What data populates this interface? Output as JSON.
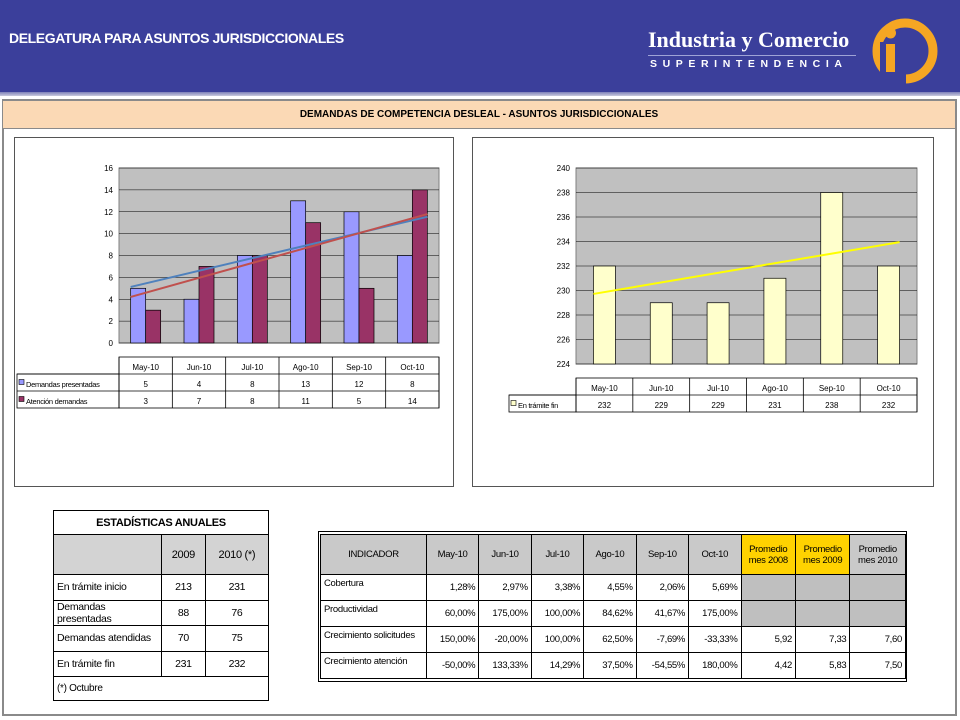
{
  "header": {
    "title": "DELEGATURA PARA  ASUNTOS JURISDICCIONALES",
    "brand_name": "Industria y Comercio",
    "brand_sub": "SUPERINTENDENCIA",
    "logo_text": "sic"
  },
  "section_title": "DEMANDAS DE COMPETENCIA DESLEAL - ASUNTOS JURISDICCIONALES",
  "colors": {
    "header_bg": "#3b3f9b",
    "title_bar": "#fbd9b5",
    "series_blue": "#9999ff",
    "series_maroon": "#993366",
    "series_yellow": "#ffffcc",
    "trend_yellow": "#ffff00",
    "highlight_yellow": "#ffd200",
    "plot_bg": "#c0c0c0"
  },
  "chart_data": [
    {
      "type": "bar",
      "categories": [
        "May-10",
        "Jun-10",
        "Jul-10",
        "Ago-10",
        "Sep-10",
        "Oct-10"
      ],
      "series": [
        {
          "name": "Demandas presentadas",
          "values": [
            5,
            4,
            8,
            13,
            12,
            8
          ],
          "color": "#9999ff",
          "trend_color": "#4f81bd"
        },
        {
          "name": "Atención demandas",
          "values": [
            3,
            7,
            8,
            11,
            5,
            14
          ],
          "color": "#993366",
          "trend_color": "#c0504d"
        }
      ],
      "yticks": [
        0,
        2,
        4,
        6,
        8,
        10,
        12,
        14,
        16
      ],
      "ylim": [
        0,
        16
      ],
      "trendlines": "linear",
      "grid": true,
      "legend": "data-table"
    },
    {
      "type": "bar",
      "categories": [
        "May-10",
        "Jun-10",
        "Jul-10",
        "Ago-10",
        "Sep-10",
        "Oct-10"
      ],
      "series": [
        {
          "name": "En trámite fin",
          "values": [
            232,
            229,
            229,
            231,
            238,
            232
          ],
          "color": "#ffffcc",
          "trend_color": "#ffff00"
        }
      ],
      "yticks": [
        224,
        226,
        228,
        230,
        232,
        234,
        236,
        238,
        240
      ],
      "ylim": [
        224,
        240
      ],
      "trendlines": "linear",
      "grid": true,
      "legend": "data-table"
    },
    {
      "type": "table",
      "title": "ESTADÍSTICAS ANUALES",
      "columns": [
        "",
        "2009",
        "2010 (*)"
      ],
      "rows": [
        [
          "En trámite inicio",
          "213",
          "231"
        ],
        [
          "Demandas  presentadas",
          "88",
          "76"
        ],
        [
          "Demandas atendidas",
          "70",
          "75"
        ],
        [
          "En trámite fin",
          "231",
          "232"
        ]
      ],
      "note": "(*) Octubre"
    },
    {
      "type": "table",
      "columns": [
        "INDICADOR",
        "May-10",
        "Jun-10",
        "Jul-10",
        "Ago-10",
        "Sep-10",
        "Oct-10",
        "Promedio mes 2008",
        "Promedio mes 2009",
        "Promedio mes 2010"
      ],
      "rows": [
        [
          "Cobertura",
          "1,28%",
          "2,97%",
          "3,38%",
          "4,55%",
          "2,06%",
          "5,69%",
          "",
          "",
          ""
        ],
        [
          "Productividad",
          "60,00%",
          "175,00%",
          "100,00%",
          "84,62%",
          "41,67%",
          "175,00%",
          "",
          "",
          ""
        ],
        [
          "Crecimiento solicitudes",
          "150,00%",
          "-20,00%",
          "100,00%",
          "62,50%",
          "-7,69%",
          "-33,33%",
          "5,92",
          "7,33",
          "7,60"
        ],
        [
          "Crecimiento atención",
          "-50,00%",
          "133,33%",
          "14,29%",
          "37,50%",
          "-54,55%",
          "180,00%",
          "4,42",
          "5,83",
          "7,50"
        ]
      ]
    }
  ]
}
